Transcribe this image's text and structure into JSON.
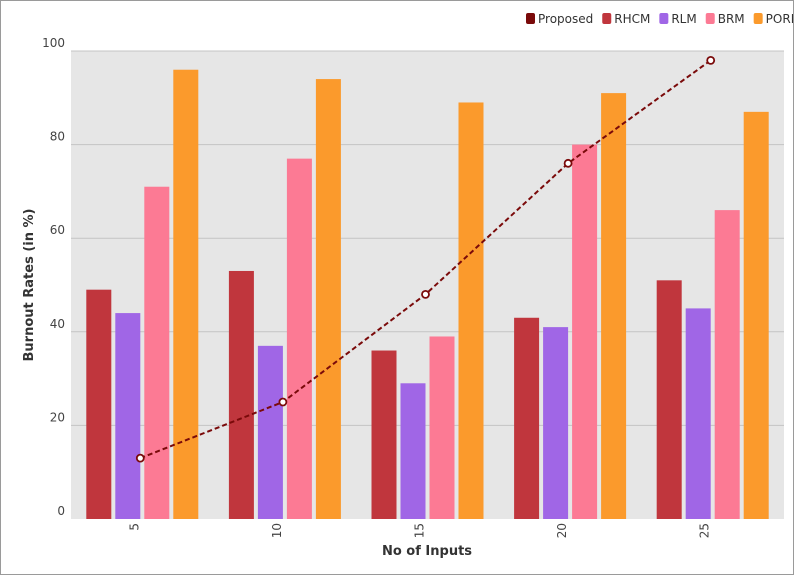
{
  "chart_data": {
    "type": "bar",
    "title": "",
    "xlabel": "No of Inputs",
    "ylabel": "Burnout Rates (in %)",
    "categories": [
      "5",
      "10",
      "15",
      "20",
      "25"
    ],
    "ylim": [
      0,
      100
    ],
    "yticks": [
      "0",
      "20",
      "40",
      "60",
      "80",
      "100"
    ],
    "grid": true,
    "legend_position": "top-right",
    "line_series": {
      "name": "Proposed",
      "color": "#7a0a0a",
      "style": "dashed",
      "values": [
        13,
        25,
        48,
        76,
        98
      ]
    },
    "series": [
      {
        "name": "RHCM",
        "color": "#c0363d",
        "values": [
          49,
          53,
          36,
          43,
          51
        ]
      },
      {
        "name": "RLM",
        "color": "#a066e6",
        "values": [
          44,
          37,
          29,
          41,
          45
        ]
      },
      {
        "name": "BRM",
        "color": "#fc7a94",
        "values": [
          71,
          77,
          39,
          80,
          66
        ]
      },
      {
        "name": "PORM",
        "color": "#fb9a2c",
        "values": [
          96,
          94,
          89,
          91,
          87
        ]
      }
    ]
  }
}
